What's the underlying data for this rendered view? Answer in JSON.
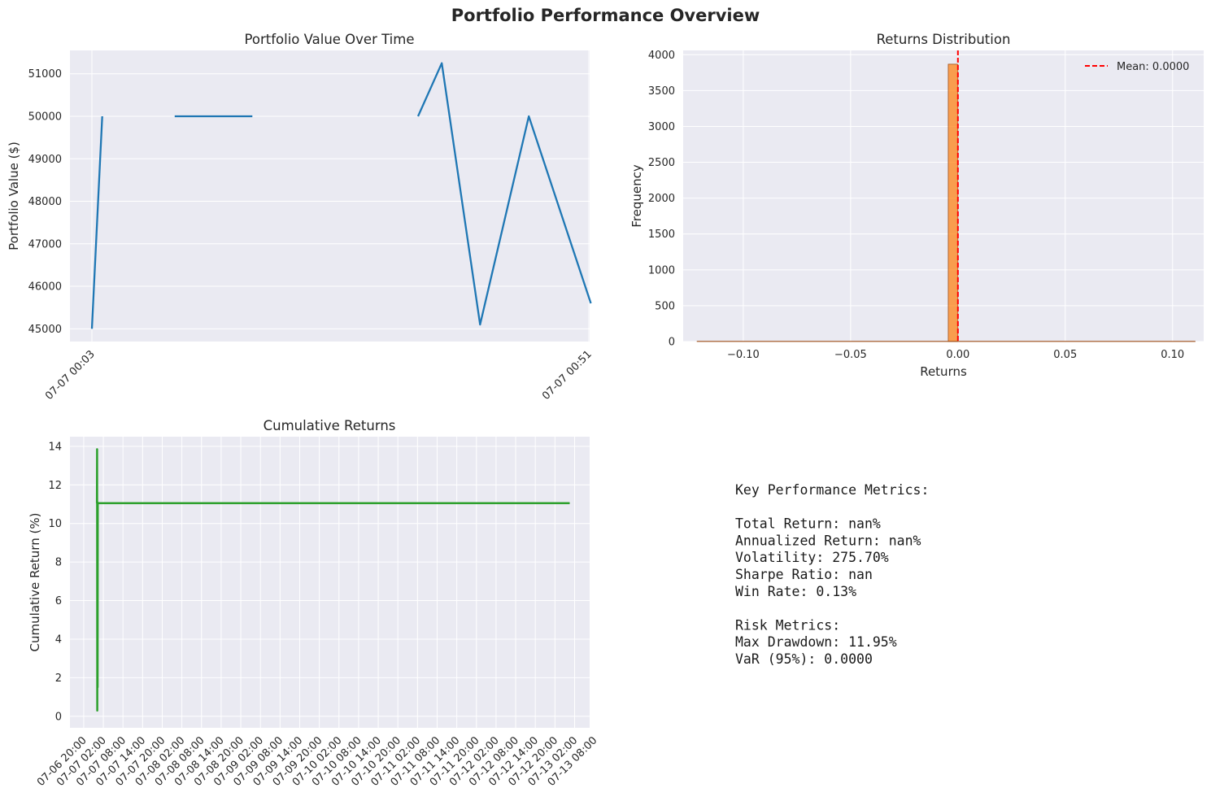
{
  "suptitle": "Portfolio Performance Overview",
  "chart_data": [
    {
      "type": "line",
      "title": "Portfolio Value Over Time",
      "xlabel": "",
      "ylabel": "Portfolio Value ($)",
      "color": "#1f77b4",
      "xlim_minutes": [
        0,
        48
      ],
      "ylim": [
        44700,
        51550
      ],
      "yticks": [
        45000,
        46000,
        47000,
        48000,
        49000,
        50000,
        51000
      ],
      "xtick_labels": [
        {
          "label": "07-07 00:03",
          "minute": 0
        },
        {
          "label": "07-07 00:51",
          "minute": 48
        }
      ],
      "segments": [
        [
          [
            0.0,
            45000
          ],
          [
            1.0,
            50000
          ]
        ],
        [
          [
            8.0,
            50000
          ],
          [
            15.5,
            50000
          ]
        ],
        [
          [
            31.5,
            50000
          ],
          [
            33.8,
            51250
          ],
          [
            37.5,
            45100
          ],
          [
            42.2,
            50000
          ],
          [
            48.2,
            45600
          ]
        ]
      ]
    },
    {
      "type": "histogram",
      "title": "Returns Distribution",
      "xlabel": "Returns",
      "ylabel": "Frequency",
      "bar_color": "#ff7f0e",
      "bar_edge": "#a0521e",
      "xlim": [
        -0.128,
        0.1145
      ],
      "ylim": [
        0,
        4060
      ],
      "xticks": [
        -0.1,
        -0.05,
        0.0,
        0.05,
        0.1
      ],
      "xtick_labels": [
        "−0.10",
        "−0.05",
        "0.00",
        "0.05",
        "0.10"
      ],
      "yticks": [
        0,
        500,
        1000,
        1500,
        2000,
        2500,
        3000,
        3500,
        4000
      ],
      "bins": [
        {
          "x0": -0.0045,
          "x1": 0.0,
          "count": 3868
        },
        {
          "x0": -0.1215,
          "x1": 0.1105,
          "count": 4
        }
      ],
      "mean_line": {
        "value": 0.0,
        "label": "Mean: 0.0000",
        "color": "#ff0000"
      },
      "legend_position": "upper right"
    },
    {
      "type": "line",
      "title": "Cumulative Returns",
      "xlabel": "",
      "ylabel": "Cumulative Return (%)",
      "color": "#2ca02c",
      "xlim_hours": [
        -4.2,
        154.6
      ],
      "ylim": [
        -0.6,
        14.5
      ],
      "yticks": [
        0,
        2,
        4,
        6,
        8,
        10,
        12,
        14
      ],
      "xtick_labels": [
        "07-06 20:00",
        "07-07 02:00",
        "07-07 08:00",
        "07-07 14:00",
        "07-07 20:00",
        "07-08 02:00",
        "07-08 08:00",
        "07-08 14:00",
        "07-08 20:00",
        "07-09 02:00",
        "07-09 08:00",
        "07-09 14:00",
        "07-09 20:00",
        "07-10 02:00",
        "07-10 08:00",
        "07-10 14:00",
        "07-10 20:00",
        "07-11 02:00",
        "07-11 08:00",
        "07-11 14:00",
        "07-11 20:00",
        "07-12 02:00",
        "07-12 08:00",
        "07-12 14:00",
        "07-12 20:00",
        "07-13 02:00",
        "07-13 08:00"
      ],
      "xtick_step_hours": 6,
      "points": [
        [
          4.05,
          11.05
        ],
        [
          4.1,
          13.85
        ],
        [
          4.15,
          0.3
        ],
        [
          4.2,
          11.1
        ],
        [
          4.25,
          1.5
        ],
        [
          4.3,
          11.05
        ],
        [
          148.5,
          11.05
        ]
      ]
    }
  ],
  "metrics_lines": [
    "Key Performance Metrics:",
    "",
    "Total Return: nan%",
    "Annualized Return: nan%",
    "Volatility: 275.70%",
    "Sharpe Ratio: nan",
    "Win Rate: 0.13%",
    "",
    "Risk Metrics:",
    "Max Drawdown: 11.95%",
    "VaR (95%): 0.0000"
  ]
}
